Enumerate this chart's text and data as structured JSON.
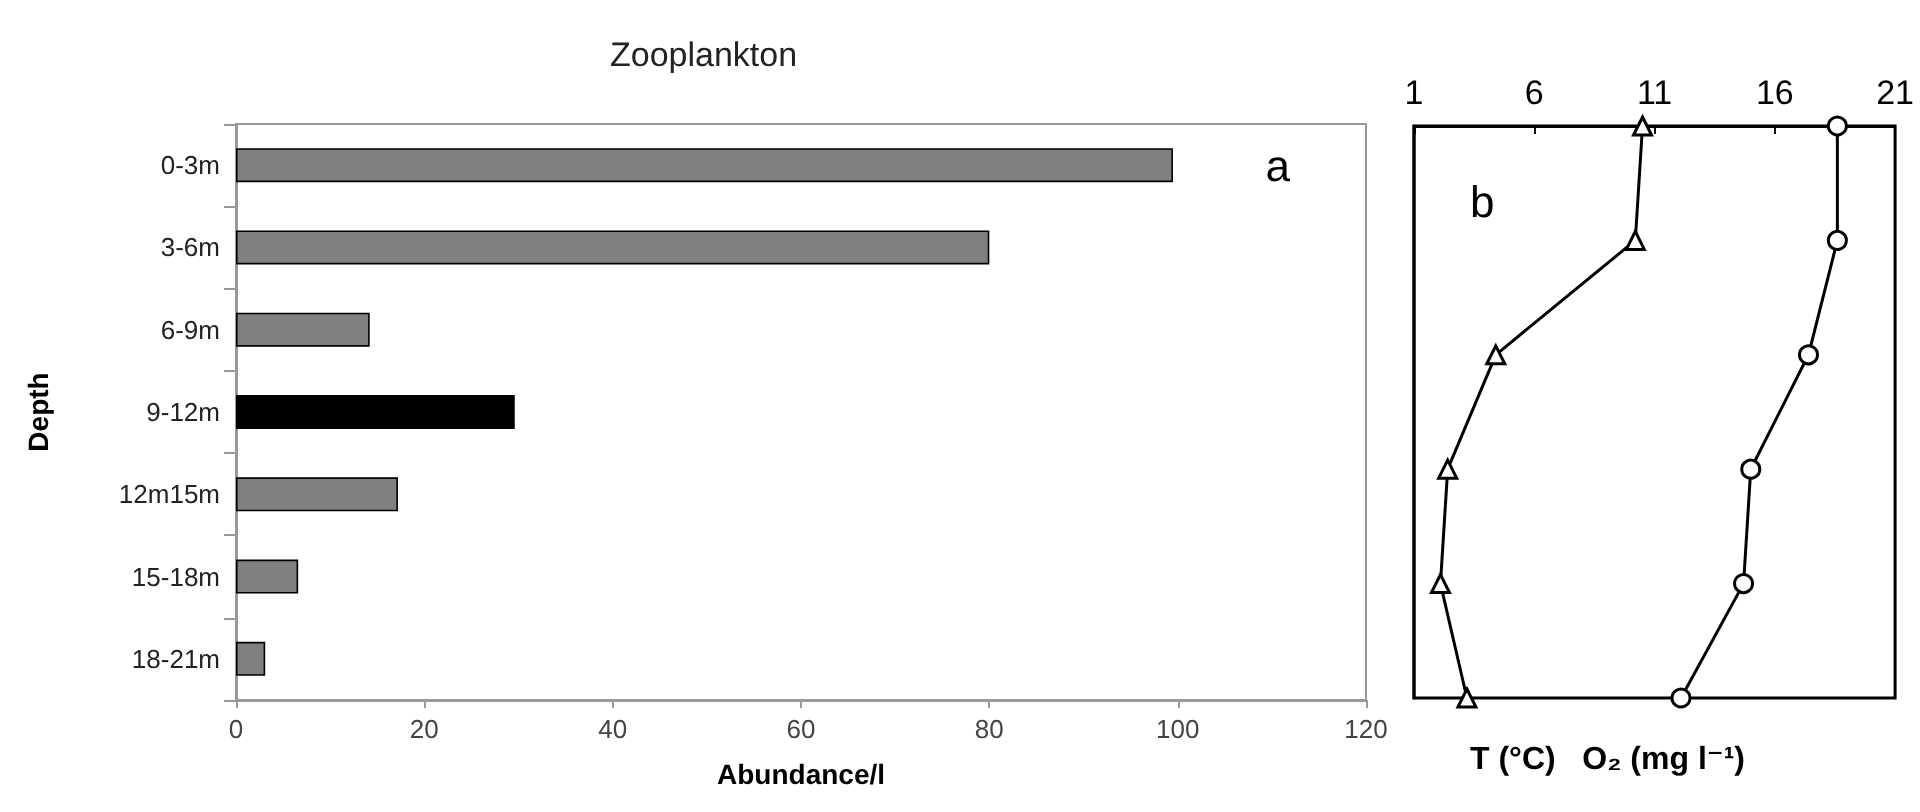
{
  "chart_data": [
    {
      "type": "bar",
      "orientation": "horizontal",
      "title": "Zooplankton",
      "xlabel": "Abundance/l",
      "ylabel": "Depth",
      "categories": [
        "0-3m",
        "3-6m",
        "6-9m",
        "9-12m",
        "12m15m",
        "15-18m",
        "18-21m"
      ],
      "values": [
        99.5,
        80,
        14.2,
        29.6,
        17.2,
        6.6,
        3.1
      ],
      "colors": [
        "#808080",
        "#808080",
        "#808080",
        "#000000",
        "#808080",
        "#808080",
        "#808080"
      ],
      "xlim": [
        0,
        120
      ],
      "xticks": [
        0,
        20,
        40,
        60,
        80,
        100,
        120
      ],
      "grid": false,
      "annotations": [
        "a"
      ]
    },
    {
      "type": "line",
      "orientation": "horizontal",
      "xlabel": "T (°C)   O₂ (mg l⁻¹)",
      "categories": [
        null,
        null,
        null,
        null,
        null,
        null
      ],
      "series": [
        {
          "color": "#000000",
          "marker": "triangle",
          "values": [
            10.5,
            10.2,
            4.4,
            2.4,
            2.1,
            3.2
          ]
        },
        {
          "color": "#000000",
          "marker": "circle",
          "values": [
            18.6,
            18.6,
            17.4,
            15.0,
            14.7,
            12.1
          ]
        }
      ],
      "xlim": [
        1,
        21
      ],
      "xticks": [
        1,
        6,
        11,
        16,
        21
      ],
      "tick_labels": "x",
      "grid": false,
      "annotations": [
        "b"
      ]
    }
  ]
}
